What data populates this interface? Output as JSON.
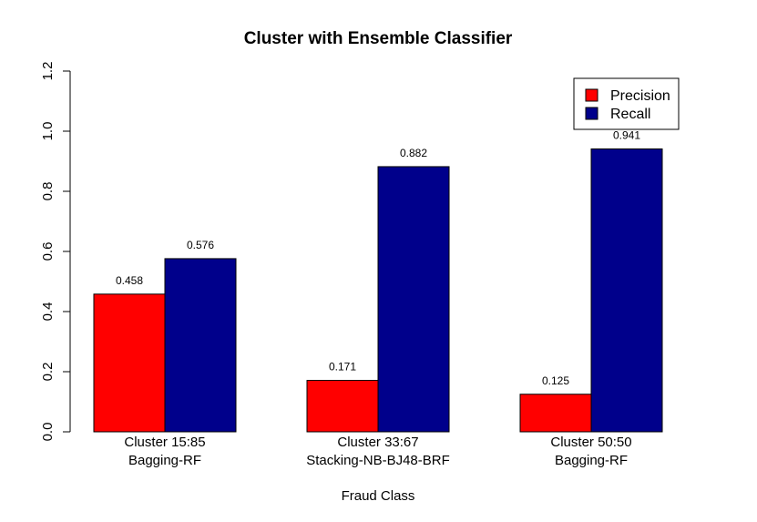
{
  "chart_data": {
    "type": "bar",
    "title": "Cluster with Ensemble Classifier",
    "xlabel": "Fraud Class",
    "ylabel": "",
    "ylim": [
      0,
      1.2
    ],
    "yticks": [
      "0.0",
      "0.2",
      "0.4",
      "0.6",
      "0.8",
      "1.0",
      "1.2"
    ],
    "categories": [
      [
        "Cluster 15:85",
        "Bagging-RF"
      ],
      [
        "Cluster 33:67",
        "Stacking-NB-BJ48-BRF"
      ],
      [
        "Cluster 50:50",
        "Bagging-RF"
      ]
    ],
    "series": [
      {
        "name": "Precision",
        "color": "#ff0000",
        "values": [
          0.458,
          0.171,
          0.125
        ],
        "labels": [
          "0.458",
          "0.171",
          "0.125"
        ]
      },
      {
        "name": "Recall",
        "color": "#00008b",
        "values": [
          0.576,
          0.882,
          0.941
        ],
        "labels": [
          "0.576",
          "0.882",
          "0.941"
        ]
      }
    ],
    "legend": "top-right",
    "grid": false
  }
}
